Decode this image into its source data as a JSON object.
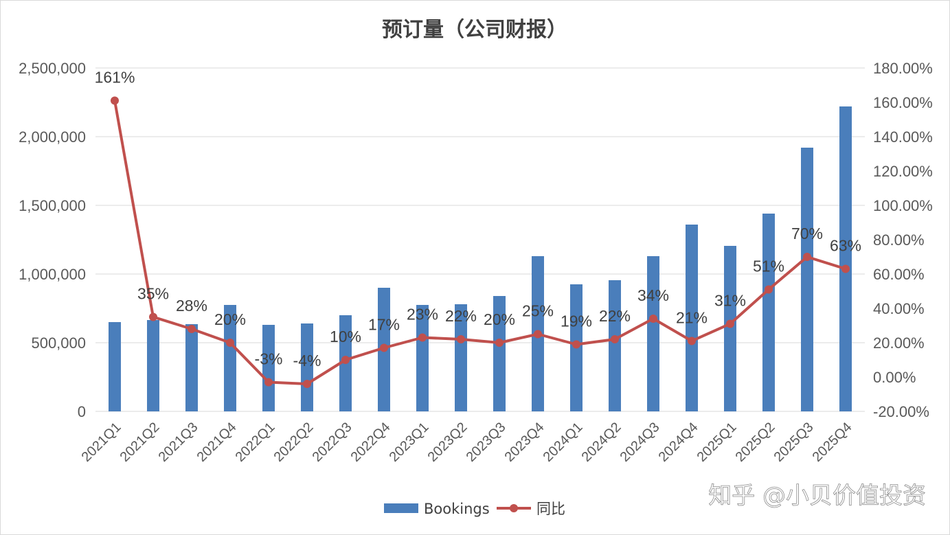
{
  "chart_data": {
    "type": "bar+line",
    "title": "预订量（公司财报）",
    "categories": [
      "2021Q1",
      "2021Q2",
      "2021Q3",
      "2021Q4",
      "2022Q1",
      "2022Q2",
      "2022Q3",
      "2022Q4",
      "2023Q1",
      "2023Q2",
      "2023Q3",
      "2023Q4",
      "2024Q1",
      "2024Q2",
      "2024Q3",
      "2024Q4",
      "2025Q1",
      "2025Q2",
      "2025Q3",
      "2025Q4"
    ],
    "series": [
      {
        "name": "Bookings",
        "type": "bar",
        "axis": "left",
        "color": "#4a7ebb",
        "values": [
          650000,
          665000,
          635000,
          775000,
          630000,
          640000,
          700000,
          900000,
          775000,
          780000,
          840000,
          1130000,
          925000,
          955000,
          1130000,
          1360000,
          1205000,
          1440000,
          1920000,
          2220000
        ]
      },
      {
        "name": "同比",
        "type": "line",
        "axis": "right",
        "color": "#c0504d",
        "values": [
          161,
          35,
          28,
          20,
          -3,
          -4,
          10,
          17,
          23,
          22,
          20,
          25,
          19,
          22,
          34,
          21,
          31,
          51,
          70,
          63
        ],
        "labels": [
          "161%",
          "35%",
          "28%",
          "20%",
          "-3%",
          "-4%",
          "10%",
          "17%",
          "23%",
          "22%",
          "20%",
          "25%",
          "19%",
          "22%",
          "34%",
          "21%",
          "31%",
          "51%",
          "70%",
          "63%"
        ]
      }
    ],
    "y_left": {
      "lim": [
        0,
        2500000
      ],
      "ticks": [
        0,
        500000,
        1000000,
        1500000,
        2000000,
        2500000
      ],
      "tick_labels": [
        "0",
        "500,000",
        "1,000,000",
        "1,500,000",
        "2,000,000",
        "2,500,000"
      ]
    },
    "y_right": {
      "lim": [
        -20,
        180
      ],
      "ticks": [
        -20,
        0,
        20,
        40,
        60,
        80,
        100,
        120,
        140,
        160,
        180
      ],
      "tick_labels": [
        "-20.00%",
        "0.00%",
        "20.00%",
        "40.00%",
        "60.00%",
        "80.00%",
        "100.00%",
        "120.00%",
        "140.00%",
        "160.00%",
        "180.00%"
      ]
    },
    "grid": true,
    "legend": "bottom"
  },
  "watermark": "知乎 @小贝价值投资"
}
